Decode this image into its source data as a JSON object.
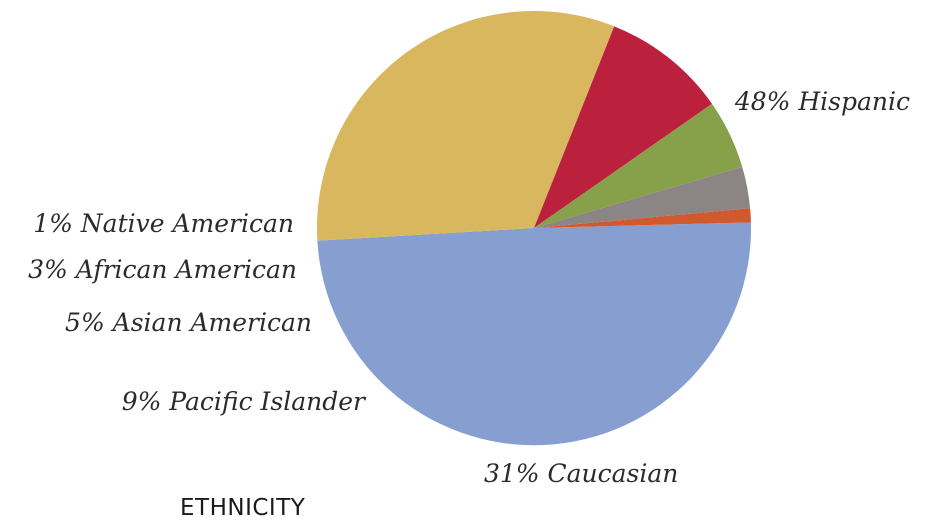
{
  "chart_data": {
    "type": "pie",
    "title": "ETHNICITY",
    "slices": [
      {
        "label": "48% Hispanic",
        "category": "Hispanic",
        "value": 48,
        "color": "#879ed1"
      },
      {
        "label": "31% Caucasian",
        "category": "Caucasian",
        "value": 31,
        "color": "#d9b75e"
      },
      {
        "label": "9% Pacific Islander",
        "category": "Pacific Islander",
        "value": 9,
        "color": "#bb213c"
      },
      {
        "label": "5% Asian American",
        "category": "Asian American",
        "value": 5,
        "color": "#86a14a"
      },
      {
        "label": "3% African American",
        "category": "African American",
        "value": 3,
        "color": "#8c8586"
      },
      {
        "label": "1% Native American",
        "category": "Native American",
        "value": 1,
        "color": "#d2592d"
      }
    ]
  }
}
